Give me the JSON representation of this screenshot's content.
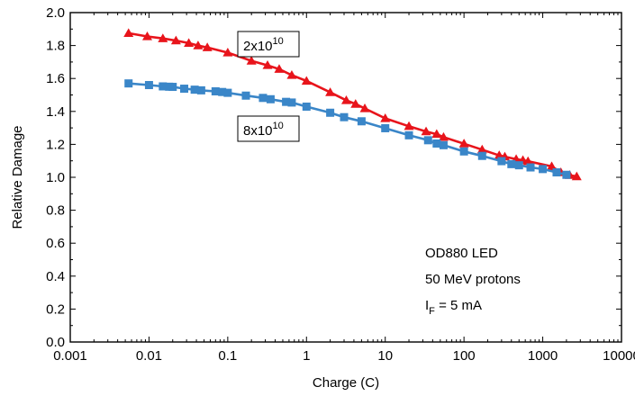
{
  "chart_data": {
    "type": "line",
    "xlabel": "Charge (C)",
    "ylabel": "Relative Damage",
    "xscale": "log",
    "xlim": [
      0.001,
      10000
    ],
    "ylim": [
      0.0,
      2.0
    ],
    "x_ticks": [
      "0.001",
      "0.01",
      "0.1",
      "1",
      "10",
      "100",
      "1000",
      "10000"
    ],
    "y_ticks": [
      "0.0",
      "0.2",
      "0.4",
      "0.6",
      "0.8",
      "1.0",
      "1.2",
      "1.4",
      "1.6",
      "1.8",
      "2.0"
    ],
    "grid": false,
    "series": [
      {
        "name_base": "2x10",
        "name_exp": "10",
        "color": "#e8141b",
        "marker": "triangle",
        "points": [
          [
            0.0055,
            1.875
          ],
          [
            0.0095,
            1.855
          ],
          [
            0.015,
            1.843
          ],
          [
            0.022,
            1.83
          ],
          [
            0.032,
            1.815
          ],
          [
            0.042,
            1.8
          ],
          [
            0.055,
            1.788
          ],
          [
            0.1,
            1.757
          ],
          [
            0.2,
            1.707
          ],
          [
            0.32,
            1.68
          ],
          [
            0.45,
            1.657
          ],
          [
            0.65,
            1.62
          ],
          [
            1.0,
            1.585
          ],
          [
            2.0,
            1.516
          ],
          [
            3.2,
            1.467
          ],
          [
            4.2,
            1.445
          ],
          [
            5.5,
            1.418
          ],
          [
            10,
            1.358
          ],
          [
            20,
            1.31
          ],
          [
            33,
            1.278
          ],
          [
            45,
            1.262
          ],
          [
            55,
            1.244
          ],
          [
            100,
            1.204
          ],
          [
            170,
            1.168
          ],
          [
            280,
            1.133
          ],
          [
            330,
            1.125
          ],
          [
            460,
            1.11
          ],
          [
            560,
            1.104
          ],
          [
            650,
            1.097
          ],
          [
            1300,
            1.066
          ],
          [
            1700,
            1.03
          ],
          [
            2200,
            1.013
          ],
          [
            2700,
            1.005
          ]
        ]
      },
      {
        "name_base": "8x10",
        "name_exp": "10",
        "color": "#3a86c8",
        "marker": "square",
        "points": [
          [
            0.0055,
            1.57
          ],
          [
            0.01,
            1.56
          ],
          [
            0.015,
            1.552
          ],
          [
            0.018,
            1.55
          ],
          [
            0.02,
            1.549
          ],
          [
            0.028,
            1.538
          ],
          [
            0.038,
            1.532
          ],
          [
            0.046,
            1.528
          ],
          [
            0.07,
            1.522
          ],
          [
            0.085,
            1.518
          ],
          [
            0.1,
            1.513
          ],
          [
            0.17,
            1.496
          ],
          [
            0.28,
            1.482
          ],
          [
            0.35,
            1.474
          ],
          [
            0.55,
            1.458
          ],
          [
            0.65,
            1.454
          ],
          [
            1.0,
            1.429
          ],
          [
            2.0,
            1.392
          ],
          [
            3.0,
            1.365
          ],
          [
            5.0,
            1.34
          ],
          [
            10,
            1.298
          ],
          [
            20,
            1.255
          ],
          [
            35,
            1.225
          ],
          [
            45,
            1.205
          ],
          [
            55,
            1.195
          ],
          [
            100,
            1.157
          ],
          [
            170,
            1.13
          ],
          [
            300,
            1.098
          ],
          [
            400,
            1.08
          ],
          [
            500,
            1.073
          ],
          [
            700,
            1.06
          ],
          [
            1000,
            1.05
          ],
          [
            1500,
            1.03
          ],
          [
            2000,
            1.015
          ]
        ]
      }
    ],
    "annotations": [
      "OD880 LED",
      "50 MeV protons",
      "I",
      "F",
      " = 5 mA"
    ]
  }
}
